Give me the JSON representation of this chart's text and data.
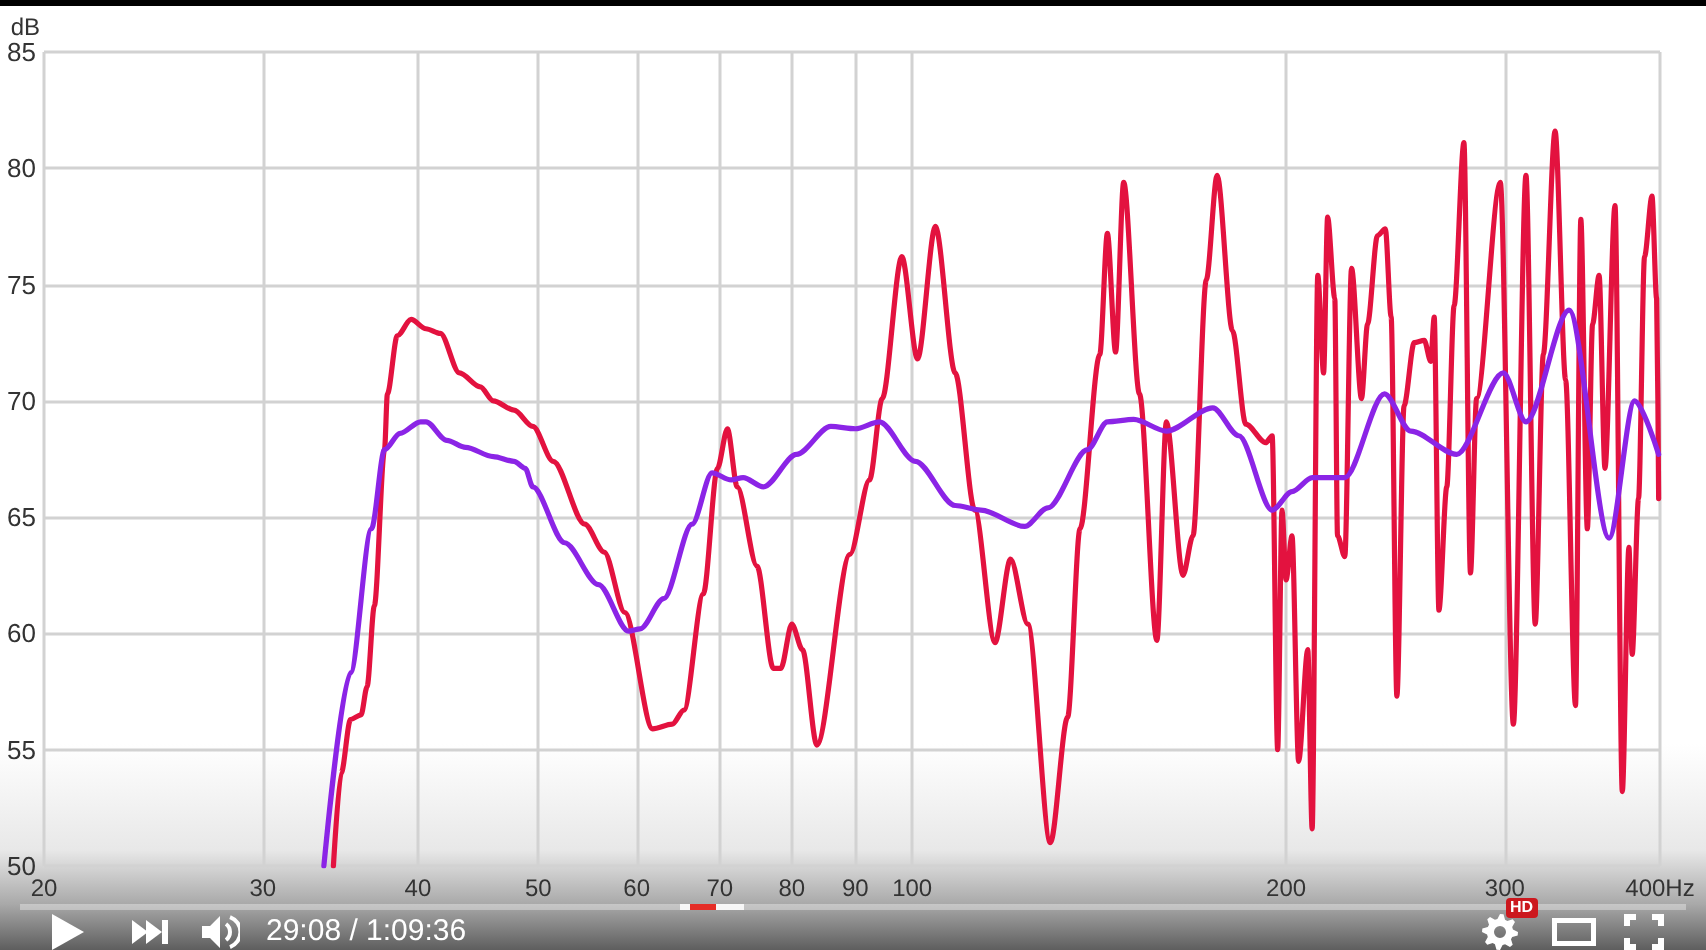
{
  "chart_data": {
    "type": "line",
    "ylabel": "dB",
    "log": "x",
    "grid": true,
    "marker": "none",
    "line_style": "solid",
    "xlim": [
      20,
      400
    ],
    "xticks": [
      20,
      30,
      40,
      50,
      60,
      70,
      80,
      90,
      100,
      200,
      300,
      {
        "value": 400,
        "label": "400Hz"
      }
    ],
    "ylim": [
      50,
      85
    ],
    "yticks": [
      50,
      55,
      60,
      65,
      70,
      75,
      80,
      85
    ],
    "series": [
      {
        "color": "#e3123f",
        "x": [
          34.2,
          34.7,
          35.3,
          36.0,
          36.4,
          36.9,
          37.6,
          37.8,
          38.5,
          39.5,
          40.6,
          41.7,
          43.2,
          44.9,
          46.0,
          47.8,
          49.5,
          51.4,
          54.5,
          56.5,
          58.7,
          61.8,
          64.1,
          65.5,
          67.9,
          69.7,
          71.0,
          72.3,
          75.0,
          77.3,
          78.4,
          80,
          81.6,
          83.8,
          89.1,
          92.4,
          94.6,
          98.1,
          101,
          104.4,
          108.3,
          112.3,
          116.6,
          120,
          123.9,
          129.2,
          133.4,
          136.5,
          141.6,
          143.6,
          145.8,
          148,
          152.4,
          157.4,
          160.2,
          165.2,
          168.3,
          172.5,
          176,
          181.1,
          185.6,
          192.6,
          194.9,
          196.9,
          198.5,
          200,
          202.2,
          204.7,
          208.2,
          209.9,
          212.1,
          214.4,
          216,
          218.9,
          220,
          223,
          225.8,
          230,
          232.6,
          236.9,
          240.4,
          243,
          245.6,
          248.9,
          253.6,
          258.4,
          261.5,
          263.2,
          265.5,
          269.4,
          273.1,
          278.1,
          281.5,
          284.7,
          297.5,
          304.8,
          312,
          317.4,
          322.2,
          329.3,
          335.8,
          342,
          345.4,
          349.6,
          353,
          357.3,
          361.2,
          368,
          373,
          377.6,
          379.9,
          384.4,
          388.7,
          394.1,
          397.5,
          399
        ],
        "values": [
          50,
          54.0,
          56.3,
          56.5,
          57.7,
          61.2,
          67.9,
          70.3,
          72.8,
          73.5,
          73.1,
          72.9,
          71.2,
          70.6,
          70.0,
          69.6,
          68.9,
          67.4,
          64.7,
          63.5,
          60.9,
          55.9,
          56.1,
          56.7,
          61.7,
          67.1,
          68.8,
          66.3,
          62.9,
          58.5,
          58.5,
          60.4,
          59.3,
          55.2,
          63.4,
          66.6,
          70.1,
          76.2,
          71.8,
          77.5,
          71.2,
          65.3,
          59.6,
          63.2,
          60.4,
          51.0,
          56.4,
          64.5,
          72.0,
          77.2,
          72.1,
          79.4,
          70.3,
          59.7,
          69.1,
          62.5,
          64.2,
          75.2,
          79.7,
          73.0,
          69.0,
          68.2,
          68.5,
          55.0,
          65.3,
          62.3,
          64.2,
          54.5,
          59.3,
          51.6,
          75.4,
          71.2,
          77.9,
          74.4,
          64.2,
          63.3,
          75.7,
          70.1,
          73.3,
          77.1,
          77.4,
          73.6,
          57.3,
          69.8,
          72.5,
          72.6,
          71.7,
          73.6,
          61.0,
          66.3,
          74.1,
          81.1,
          62.6,
          70.1,
          79.4,
          56.1,
          79.7,
          60.4,
          72.0,
          81.6,
          70.9,
          56.9,
          77.8,
          64.5,
          73.3,
          75.4,
          67.1,
          78.4,
          53.2,
          63.7,
          59.1,
          65.8,
          76.2,
          78.8,
          74.4,
          65.8
        ]
      },
      {
        "color": "#8b24e6",
        "x": [
          33.6,
          35.3,
          36.7,
          37.6,
          38.7,
          40.2,
          40.6,
          42.2,
          43.7,
          46.0,
          47.8,
          48.8,
          49.5,
          52.5,
          55.9,
          59.1,
          60.4,
          63.1,
          66.5,
          69.0,
          71.5,
          73.1,
          75.9,
          80.7,
          86.0,
          90,
          94.1,
          100.6,
          108.3,
          113.6,
          123.2,
          128.6,
          138.4,
          143.6,
          150.8,
          160.2,
          174.6,
          183.2,
          194.9,
          202.2,
          209.9,
          223,
          240,
          252,
          274.4,
          299.2,
          312,
          338,
          364,
          381.6,
          399
        ],
        "values": [
          50,
          58.3,
          64.5,
          67.9,
          68.6,
          69.1,
          69.1,
          68.3,
          68.0,
          67.6,
          67.4,
          67.1,
          66.3,
          63.9,
          62.1,
          60.1,
          60.2,
          61.5,
          64.7,
          66.9,
          66.6,
          66.7,
          66.3,
          67.7,
          68.9,
          68.8,
          69.1,
          67.4,
          65.5,
          65.3,
          64.6,
          65.4,
          67.9,
          69.1,
          69.2,
          68.7,
          69.7,
          68.5,
          65.3,
          66.1,
          66.7,
          66.7,
          70.3,
          68.7,
          67.7,
          71.2,
          69.1,
          73.9,
          64.1,
          70.0,
          67.7
        ]
      }
    ],
    "annotations": [
      "29:08 / 1:09:36",
      "HD"
    ]
  }
}
